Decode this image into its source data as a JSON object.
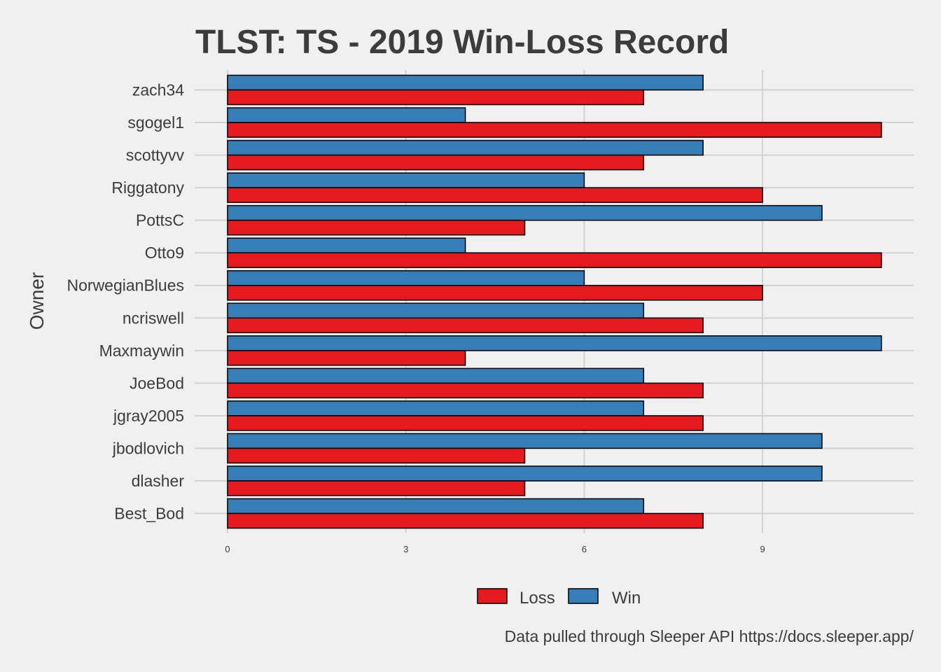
{
  "chart_data": {
    "type": "bar",
    "orientation": "horizontal",
    "title": "TLST: TS - 2019 Win-Loss Record",
    "ylabel": "Owner",
    "xlabel": "",
    "caption": "Data pulled through Sleeper API https://docs.sleeper.app/",
    "categories": [
      "zach34",
      "sgogel1",
      "scottyvv",
      "Riggatony",
      "PottsC",
      "Otto9",
      "NorwegianBlues",
      "ncriswell",
      "Maxmaywin",
      "JoeBod",
      "jgray2005",
      "jbodlovich",
      "dlasher",
      "Best_Bod"
    ],
    "series": [
      {
        "name": "Win",
        "color": "#377eb8",
        "values": [
          8,
          4,
          8,
          6,
          10,
          4,
          6,
          7,
          11,
          7,
          7,
          10,
          10,
          7
        ]
      },
      {
        "name": "Loss",
        "color": "#e41a1c",
        "values": [
          7,
          11,
          7,
          9,
          5,
          11,
          9,
          8,
          4,
          8,
          8,
          5,
          5,
          8
        ]
      }
    ],
    "xlim": [
      0,
      11.5
    ],
    "xticks": [
      "0",
      "3",
      "6",
      "9"
    ],
    "grid": true,
    "legend": {
      "position": "bottom",
      "items": [
        {
          "name": "Loss",
          "color": "#e41a1c"
        },
        {
          "name": "Win",
          "color": "#377eb8"
        }
      ]
    }
  }
}
